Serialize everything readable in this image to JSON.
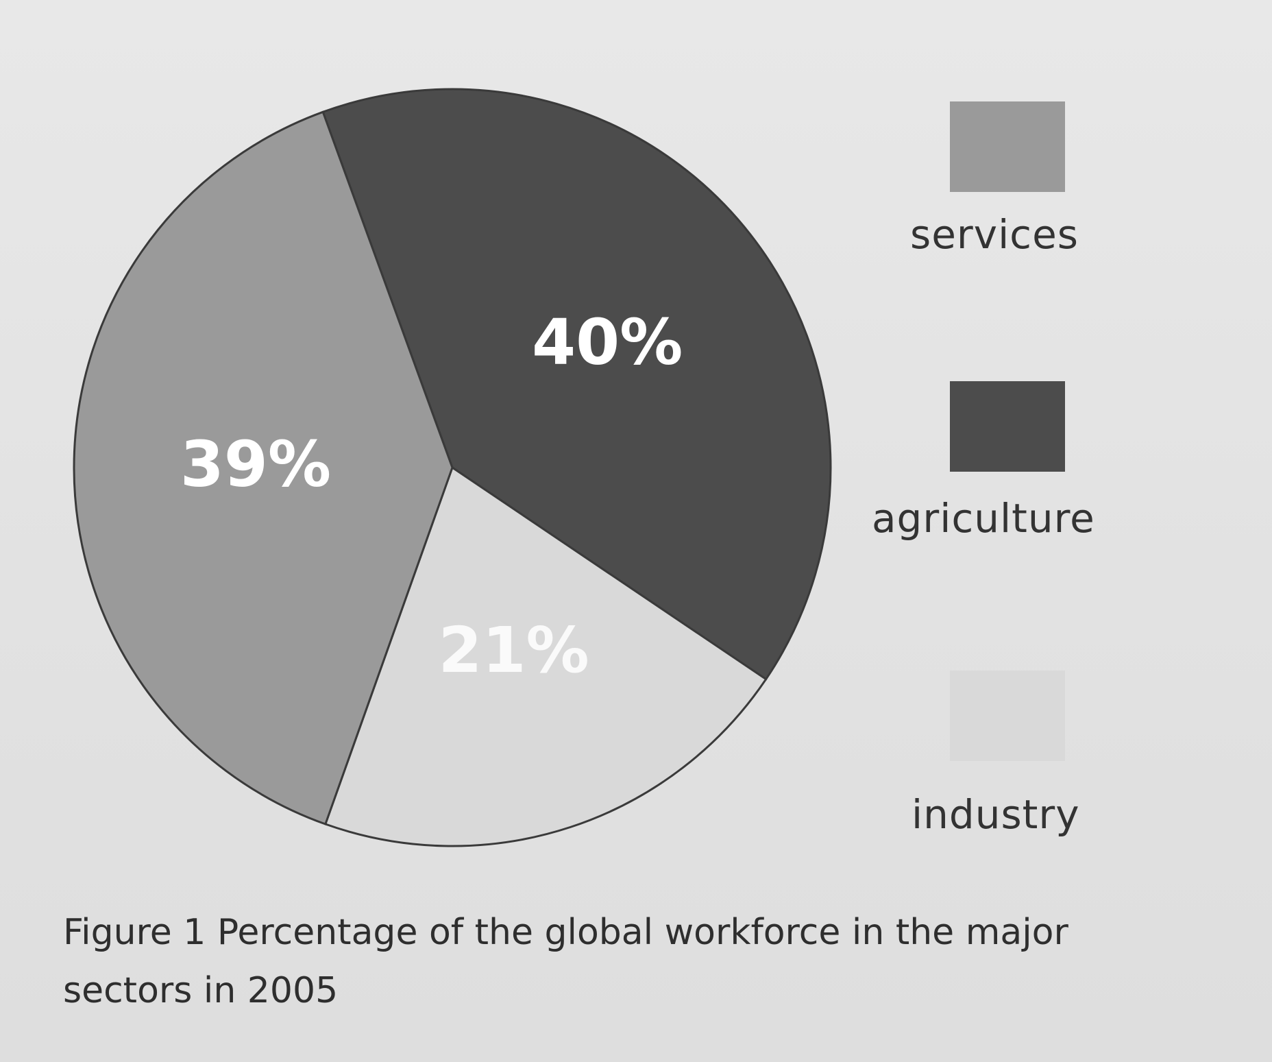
{
  "chart_data": {
    "type": "pie",
    "title": "",
    "slices": [
      {
        "label": "services",
        "value": 39,
        "value_label": "39%",
        "color": "#9a9a9a"
      },
      {
        "label": "agriculture",
        "value": 40,
        "value_label": "40%",
        "color": "#4c4c4c"
      },
      {
        "label": "industry",
        "value": 21,
        "value_label": "21%",
        "color": "#d9d9d9"
      }
    ],
    "legend_placement": "right"
  },
  "legend": {
    "items": [
      {
        "label": "services",
        "color": "#9a9a9a"
      },
      {
        "label": "agriculture",
        "color": "#4c4c4c"
      },
      {
        "label": "industry",
        "color": "#d9d9d9"
      }
    ]
  },
  "caption": {
    "text": "Figure 1  Percentage of the global workforce in the major sectors in 2005"
  }
}
